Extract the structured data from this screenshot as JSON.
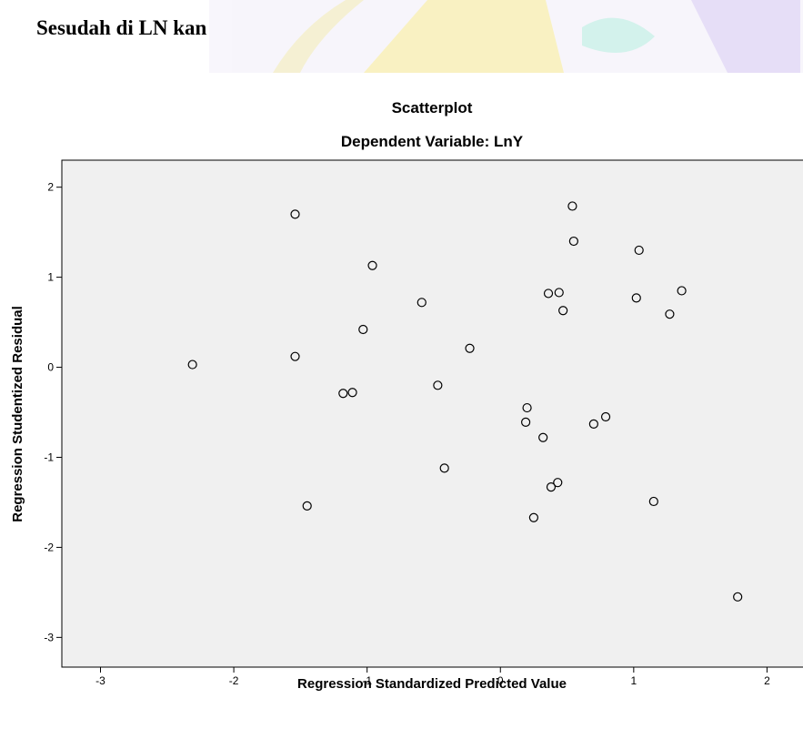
{
  "header": {
    "text": "Sesudah di LN kan"
  },
  "chart_data": {
    "type": "scatter",
    "title": "Scatterplot",
    "subtitle": "Dependent Variable: LnY",
    "x_label": "Regression Standardized Predicted Value",
    "y_label": "Regression Studentized Residual",
    "color": "#000000",
    "x": [
      -2.31,
      -1.54,
      -1.54,
      -1.45,
      -1.18,
      -1.11,
      -1.03,
      -0.96,
      -0.59,
      -0.47,
      -0.42,
      -0.23,
      0.19,
      0.2,
      0.25,
      0.32,
      0.36,
      0.38,
      0.43,
      0.44,
      0.47,
      0.54,
      0.55,
      0.7,
      0.79,
      1.02,
      1.04,
      1.15,
      1.27,
      1.36,
      1.78
    ],
    "values": [
      0.03,
      1.7,
      0.12,
      -1.54,
      -0.29,
      -0.28,
      0.42,
      1.13,
      0.72,
      -0.2,
      -1.12,
      0.21,
      -0.61,
      -0.45,
      -1.67,
      -0.78,
      0.82,
      -1.33,
      -1.28,
      0.83,
      0.63,
      1.79,
      1.4,
      -0.63,
      -0.55,
      0.77,
      1.3,
      -1.49,
      0.59,
      0.85,
      -2.55
    ],
    "xlim": [
      -3.29,
      2.27
    ],
    "ylim": [
      -3.33,
      2.3
    ],
    "xticks": [
      -3,
      -2,
      -1,
      0,
      1,
      2
    ],
    "yticks": [
      -3,
      -2,
      -1,
      0,
      1,
      2
    ]
  }
}
